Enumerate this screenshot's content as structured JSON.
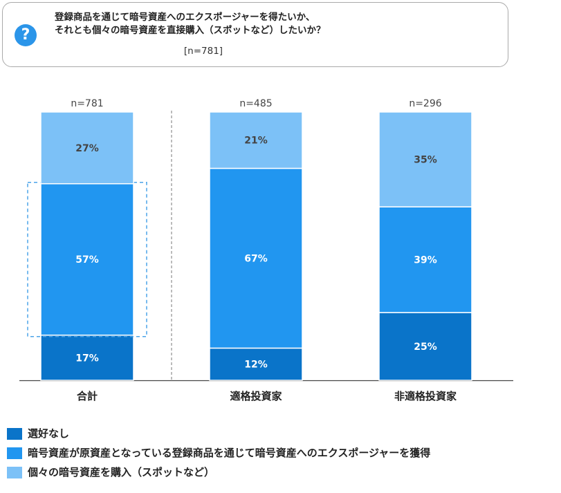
{
  "question": {
    "icon": "question-icon",
    "line1": "登録商品を通じて暗号資産へのエクスポージャーを得たいか、",
    "line2": "それとも個々の暗号資産を直接購入（スポットなど）したいか？",
    "n_label": "[n=781]"
  },
  "chart_data": {
    "type": "bar",
    "stacked": true,
    "categories": [
      "合計",
      "適格投資家",
      "非適格投資家"
    ],
    "n_labels": [
      "n=781",
      "n=485",
      "n=296"
    ],
    "series": [
      {
        "name": "選好なし",
        "values": [
          17,
          12,
          25
        ],
        "labels": [
          "17%",
          "12%",
          "25%"
        ],
        "color": "#0a74c9"
      },
      {
        "name": "暗号資産が原資産となっている登録商品を通じて暗号資産へのエクスポージャーを獲得",
        "values": [
          57,
          67,
          39
        ],
        "labels": [
          "57%",
          "67%",
          "39%"
        ],
        "color": "#2196f0"
      },
      {
        "name": "個々の暗号資産を購入（スポットなど）",
        "values": [
          27,
          21,
          35
        ],
        "labels": [
          "27%",
          "21%",
          "35%"
        ],
        "color": "#7cc1f7"
      }
    ],
    "ylim": [
      0,
      100
    ],
    "highlight": {
      "category": "合計",
      "series": "暗号資産が原資産となっている登録商品を通じて暗号資産へのエクスポージャーを獲得"
    },
    "legend_position": "bottom",
    "grid": false
  }
}
